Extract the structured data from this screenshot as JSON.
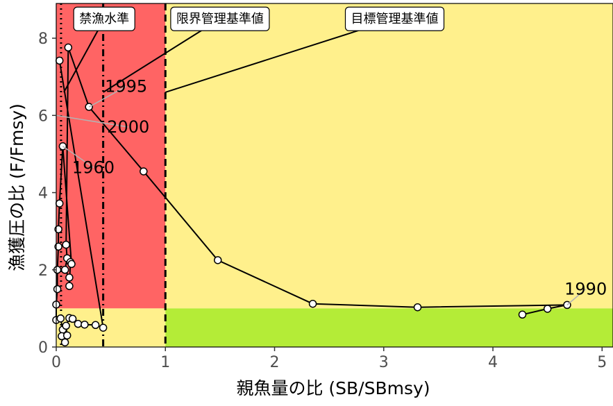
{
  "chart_data": {
    "type": "scatter",
    "title": "",
    "xlabel": "親魚量の比 (SB/SBmsy)",
    "ylabel": "漁獲圧の比 (F/Fmsy)",
    "xlim": [
      0,
      5.1
    ],
    "ylim": [
      0,
      8.9
    ],
    "x_ticks": [
      0,
      1,
      2,
      3,
      4,
      5
    ],
    "y_ticks": [
      0,
      2,
      4,
      6,
      8
    ],
    "grid": false,
    "zones": [
      {
        "name": "red",
        "color": "#ff6464",
        "x": [
          0,
          1
        ],
        "y": [
          1,
          8.9
        ]
      },
      {
        "name": "yellow-upper",
        "color": "#fff08c",
        "x": [
          1,
          5.1
        ],
        "y": [
          1,
          8.9
        ]
      },
      {
        "name": "yellow-lower",
        "color": "#fff08c",
        "x": [
          0,
          1
        ],
        "y": [
          0,
          1
        ]
      },
      {
        "name": "green",
        "color": "#b4ec37",
        "x": [
          1,
          5.1
        ],
        "y": [
          0,
          1
        ]
      }
    ],
    "reference_lines": [
      {
        "label": "禁漁水準",
        "x": 0.044,
        "style": "dotted",
        "label_x": 0.44,
        "label_y": 8.5,
        "leader_end": [
          0.07,
          6.6
        ]
      },
      {
        "label": "限界管理基準値",
        "x": 0.43,
        "style": "dashdot",
        "label_x": 1.5,
        "label_y": 8.5,
        "leader_end": [
          0.43,
          6.6
        ]
      },
      {
        "label": "目標管理基準値",
        "x": 1.0,
        "style": "dashed",
        "label_x": 3.1,
        "label_y": 8.5,
        "leader_end": [
          1.0,
          6.6
        ]
      }
    ],
    "series": [
      {
        "color": "#000000",
        "points": [
          {
            "x": 4.27,
            "y": 0.84
          },
          {
            "x": 4.5,
            "y": 0.99
          },
          {
            "x": 4.68,
            "y": 1.09
          },
          {
            "x": 3.31,
            "y": 1.03
          },
          {
            "x": 2.35,
            "y": 1.12
          },
          {
            "x": 1.48,
            "y": 2.25
          },
          {
            "x": 0.8,
            "y": 4.55
          },
          {
            "x": 0.3,
            "y": 6.22
          },
          {
            "x": 0.11,
            "y": 7.76
          },
          {
            "x": 0.09,
            "y": 2.65
          },
          {
            "x": 0.1,
            "y": 2.3
          },
          {
            "x": 0.08,
            "y": 2.0
          },
          {
            "x": 0.12,
            "y": 1.8
          },
          {
            "x": 0.12,
            "y": 1.58
          },
          {
            "x": 0.13,
            "y": 2.2
          },
          {
            "x": 0.14,
            "y": 2.15
          },
          {
            "x": 0.06,
            "y": 5.2
          },
          {
            "x": 0.03,
            "y": 3.72
          },
          {
            "x": 0.02,
            "y": 3.05
          },
          {
            "x": 0.02,
            "y": 2.6
          },
          {
            "x": 0.01,
            "y": 2.0
          },
          {
            "x": 0.01,
            "y": 1.5
          },
          {
            "x": 0.0,
            "y": 1.1
          },
          {
            "x": 0.0,
            "y": 0.7
          },
          {
            "x": 0.04,
            "y": 0.74
          },
          {
            "x": 0.06,
            "y": 0.45
          },
          {
            "x": 0.05,
            "y": 0.28
          },
          {
            "x": 0.08,
            "y": 0.12
          },
          {
            "x": 0.1,
            "y": 0.3
          },
          {
            "x": 0.09,
            "y": 0.55
          },
          {
            "x": 0.12,
            "y": 0.75
          },
          {
            "x": 0.15,
            "y": 0.73
          },
          {
            "x": 0.2,
            "y": 0.6
          },
          {
            "x": 0.26,
            "y": 0.58
          },
          {
            "x": 0.36,
            "y": 0.57
          },
          {
            "x": 0.43,
            "y": 0.5
          },
          {
            "x": 0.03,
            "y": 7.42
          }
        ]
      }
    ],
    "annotations": [
      {
        "text": "1990",
        "x": 4.68,
        "y": 1.09,
        "label_x": 4.85,
        "label_y": 1.5
      },
      {
        "text": "1995",
        "x": 0.3,
        "y": 6.22,
        "label_x": 0.64,
        "label_y": 6.75
      },
      {
        "text": "2000",
        "x": 0.0,
        "y": 6.0,
        "label_x": 0.66,
        "label_y": 5.7
      },
      {
        "text": "1960",
        "x": 0.06,
        "y": 5.2,
        "label_x": 0.34,
        "label_y": 4.65
      }
    ]
  }
}
